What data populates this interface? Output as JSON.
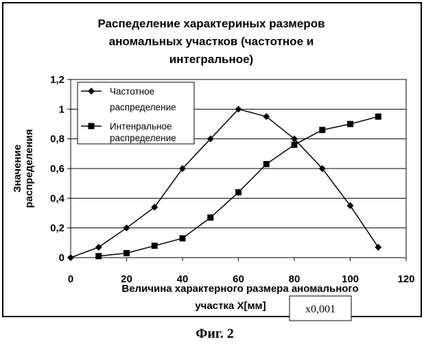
{
  "chart_data": {
    "type": "line",
    "title_lines": [
      "Распеделение характериных размеров",
      "аномальных участков (частотное и",
      "интегральное)"
    ],
    "xlabel_lines": [
      "Величина характерного размера аномального",
      "участка Х[мм]"
    ],
    "ylabel_lines": [
      "Значение",
      "распределения"
    ],
    "x_scale_note": "х0,001",
    "xlim": [
      0,
      120
    ],
    "ylim": [
      0,
      1.2
    ],
    "x_ticks": [
      0,
      20,
      40,
      60,
      80,
      100,
      120
    ],
    "x_tick_labels": [
      "0",
      "20",
      "40",
      "60",
      "80",
      "100",
      "120"
    ],
    "y_ticks": [
      0,
      0.2,
      0.4,
      0.6,
      0.8,
      1.0,
      1.2
    ],
    "y_tick_labels": [
      "0",
      "0,2",
      "0,4",
      "0,6",
      "0,8",
      "1",
      "1,2"
    ],
    "grid": "horizontal",
    "legend_position": "top-left",
    "series": [
      {
        "name_lines": [
          "Частотное",
          "распределение"
        ],
        "marker": "diamond",
        "color": "#000000",
        "x": [
          0,
          10,
          20,
          30,
          40,
          50,
          60,
          70,
          80,
          90,
          100,
          110
        ],
        "y": [
          0,
          0.07,
          0.2,
          0.34,
          0.6,
          0.8,
          1.0,
          0.95,
          0.8,
          0.6,
          0.35,
          0.07
        ]
      },
      {
        "name_lines": [
          "Интенральное",
          "распределение"
        ],
        "marker": "square",
        "color": "#000000",
        "x": [
          10,
          20,
          30,
          40,
          50,
          60,
          70,
          80,
          90,
          100,
          110
        ],
        "y": [
          0.01,
          0.03,
          0.08,
          0.13,
          0.27,
          0.44,
          0.63,
          0.76,
          0.86,
          0.9,
          0.95
        ]
      }
    ]
  },
  "caption": "Фиг. 2"
}
